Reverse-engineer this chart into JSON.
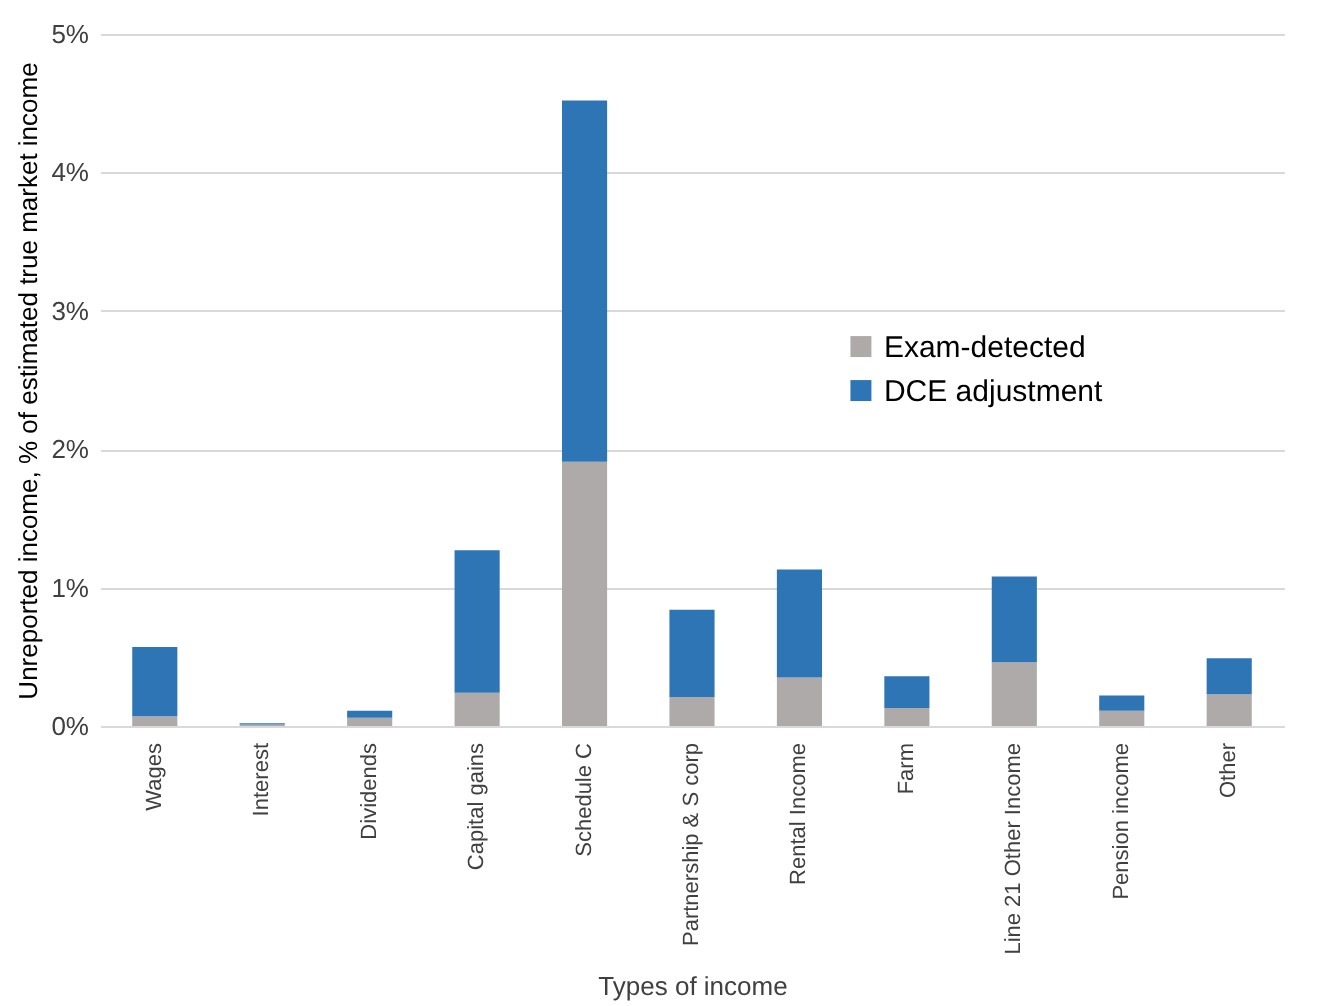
{
  "chart_data": {
    "type": "bar",
    "stacked": true,
    "xlabel": "Types of income",
    "ylabel": "Unreported income, % of estimated true market income",
    "categories": [
      "Wages",
      "Interest",
      "Dividends",
      "Capital gains",
      "Schedule C",
      "Partnership & S corp",
      "Rental Income",
      "Farm",
      "Line 21 Other Income",
      "Pension income",
      "Other"
    ],
    "series": [
      {
        "name": "Exam-detected",
        "color": "#aeaaaa",
        "values": [
          0.07,
          0.01,
          0.06,
          0.24,
          1.91,
          0.21,
          0.35,
          0.13,
          0.46,
          0.11,
          0.23
        ]
      },
      {
        "name": "DCE adjustment",
        "color": "#2e75b6",
        "values": [
          0.5,
          0.01,
          0.05,
          1.03,
          2.61,
          0.63,
          0.78,
          0.23,
          0.62,
          0.11,
          0.26
        ]
      }
    ],
    "ylim": [
      0,
      5
    ],
    "yticks": [
      {
        "value": 0,
        "label": "0%"
      },
      {
        "value": 1,
        "label": "1%"
      },
      {
        "value": 2,
        "label": "2%"
      },
      {
        "value": 3,
        "label": "3%"
      },
      {
        "value": 4,
        "label": "4%"
      },
      {
        "value": 5,
        "label": "5%"
      }
    ],
    "grid": "y",
    "legend": "right"
  }
}
